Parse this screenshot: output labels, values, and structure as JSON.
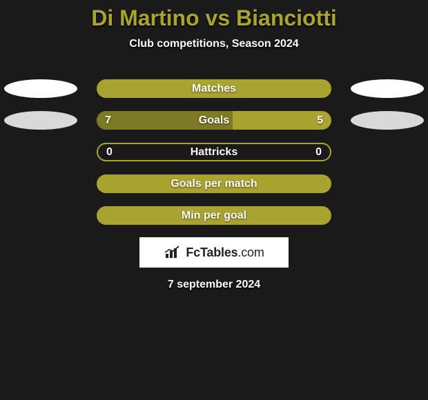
{
  "title": "Di Martino vs Bianciotti",
  "title_color": "#a9a42f",
  "subtitle": "Club competitions, Season 2024",
  "background_color": "#1a1a1a",
  "bar_colors": {
    "base": "#a9a42f",
    "fill": "#7c7a22"
  },
  "rows": [
    {
      "label": "Matches",
      "left": "",
      "right": "",
      "left_pct": 0,
      "right_pct": 0,
      "show_left_oval": true,
      "show_right_oval": true,
      "oval_grey": false,
      "border_only": false
    },
    {
      "label": "Goals",
      "left": "7",
      "right": "5",
      "left_pct": 58,
      "right_pct": 42,
      "show_left_oval": true,
      "show_right_oval": true,
      "oval_grey": true,
      "border_only": false
    },
    {
      "label": "Hattricks",
      "left": "0",
      "right": "0",
      "left_pct": 0,
      "right_pct": 0,
      "show_left_oval": false,
      "show_right_oval": false,
      "oval_grey": false,
      "border_only": true
    },
    {
      "label": "Goals per match",
      "left": "",
      "right": "",
      "left_pct": 0,
      "right_pct": 0,
      "show_left_oval": false,
      "show_right_oval": false,
      "oval_grey": false,
      "border_only": false
    },
    {
      "label": "Min per goal",
      "left": "",
      "right": "",
      "left_pct": 0,
      "right_pct": 0,
      "show_left_oval": false,
      "show_right_oval": false,
      "oval_grey": false,
      "border_only": false
    }
  ],
  "logo_text_bold": "FcTables",
  "logo_text_thin": ".com",
  "date": "7 september 2024"
}
